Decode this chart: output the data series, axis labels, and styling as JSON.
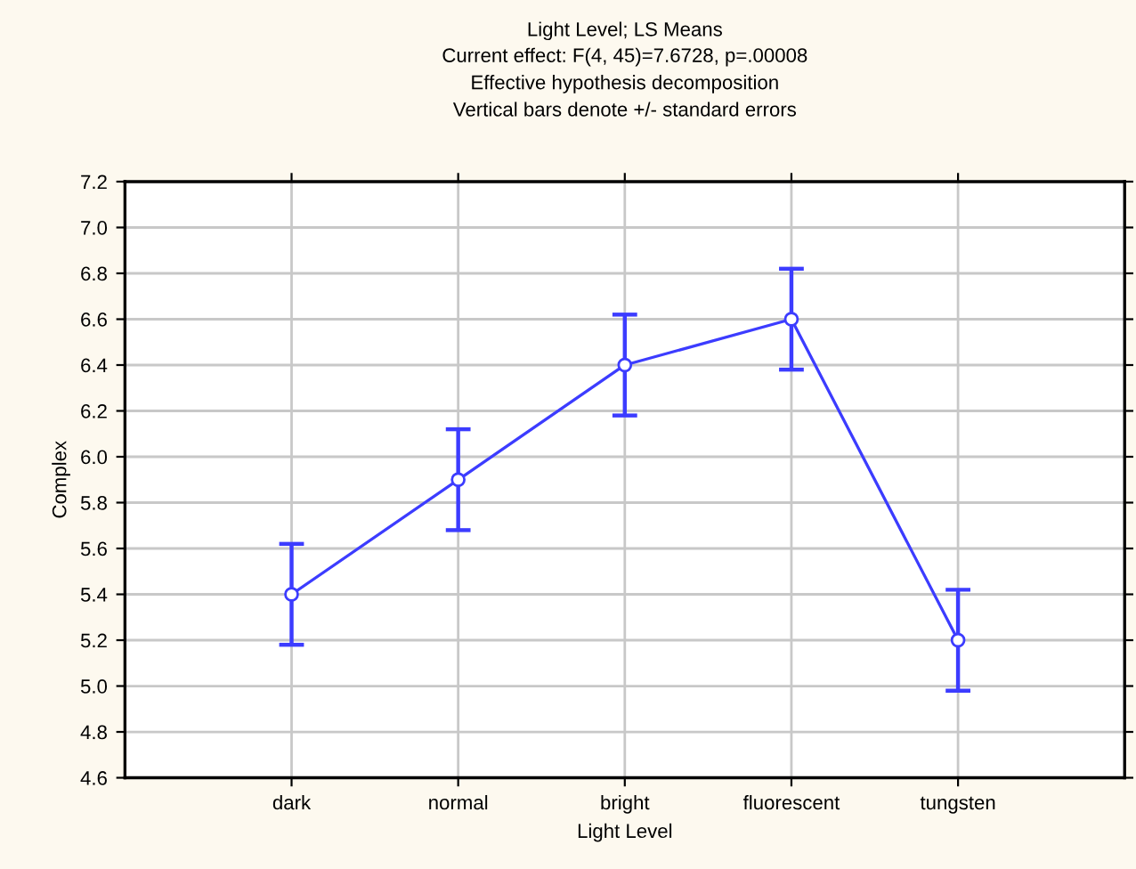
{
  "chart_data": {
    "type": "line",
    "title": "Light Level; LS Means",
    "subtitle": "Current effect: F(4, 45)=7.6728, p=.00008\nEffective hypothesis decomposition\nVertical bars denote +/- standard errors",
    "xlabel": "Light Level",
    "ylabel": "Complex",
    "categories": [
      "dark",
      "normal",
      "bright",
      "fluorescent",
      "tungsten"
    ],
    "series": [
      {
        "color": "#3c3cff",
        "values": [
          5.4,
          5.9,
          6.4,
          6.6,
          5.2
        ],
        "errors": [
          0.22,
          0.22,
          0.22,
          0.22,
          0.22
        ]
      }
    ],
    "ylim": [
      4.6,
      7.2
    ],
    "yticks": [
      4.6,
      4.8,
      {
        "value": 5,
        "label": "5.0"
      },
      5.2,
      5.4,
      5.6,
      5.8,
      {
        "value": 6,
        "label": "6.0"
      },
      6.2,
      6.4,
      6.6,
      6.8,
      {
        "value": 7,
        "label": "7.0"
      },
      7.2
    ],
    "grid": true,
    "marker": "circle",
    "line_style": "solid",
    "legend": false
  }
}
